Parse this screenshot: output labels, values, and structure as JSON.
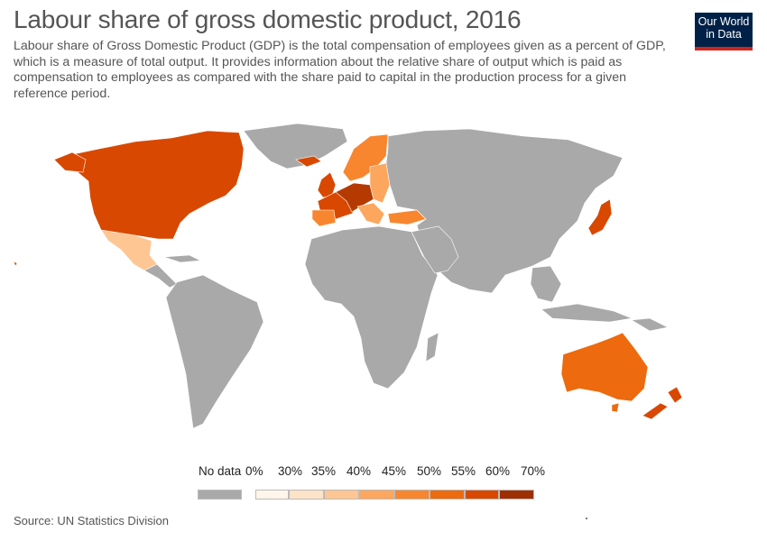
{
  "header": {
    "title": "Labour share of gross domestic product, 2016",
    "subtitle": "Labour share of Gross Domestic Product (GDP) is the total compensation of employees given as a percent of GDP, which is a measure of total output. It provides information about the relative share of output which is paid as compensation to employees as compared with the share paid to capital in the production process for a given reference period."
  },
  "logo": {
    "line1": "Our World",
    "line2": "in Data"
  },
  "legend": {
    "no_data_label": "No data",
    "no_data_color": "#a9a9a9",
    "bins": [
      {
        "label": "0%",
        "color": "#fff5eb"
      },
      {
        "label": "30%",
        "color": "#fde3c8"
      },
      {
        "label": "35%",
        "color": "#fdc693"
      },
      {
        "label": "40%",
        "color": "#fca65e"
      },
      {
        "label": "45%",
        "color": "#f8862e"
      },
      {
        "label": "50%",
        "color": "#ed6a0e"
      },
      {
        "label": "55%",
        "color": "#d84801"
      },
      {
        "label": "60%",
        "color": "#9e2f02"
      },
      {
        "label": "70%",
        "color": ""
      }
    ]
  },
  "regions": {
    "north_america_color": "#d84801",
    "mexico_color": "#fdc693",
    "europe_west_color": "#d84801",
    "europe_core_color": "#b53a02",
    "europe_light_color": "#fca65e",
    "europe_mid_color": "#f8862e",
    "turkey_color": "#f8862e",
    "japan_color": "#d84801",
    "australia_color": "#ed6a0e",
    "nz_color": "#d84801",
    "no_data_fill": "#a9a9a9"
  },
  "source": "Source: UN Statistics Division"
}
